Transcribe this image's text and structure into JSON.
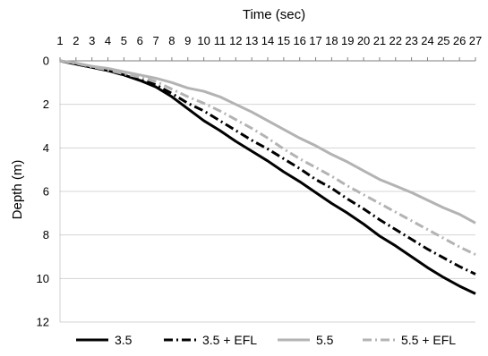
{
  "chart_data": {
    "type": "line",
    "title": "",
    "xlabel": "Time (sec)",
    "ylabel": "Depth (m)",
    "xlim": [
      1,
      27
    ],
    "ylim": [
      0,
      12
    ],
    "y_inverted": true,
    "x_axis_position": "top",
    "x_ticks": [
      "1",
      "2",
      "3",
      "4",
      "5",
      "6",
      "7",
      "8",
      "9",
      "10",
      "11",
      "12",
      "13",
      "14",
      "15",
      "16",
      "17",
      "18",
      "19",
      "20",
      "21",
      "22",
      "23",
      "24",
      "25",
      "26",
      "27"
    ],
    "y_ticks": [
      "0",
      "2",
      "4",
      "6",
      "8",
      "10",
      "12"
    ],
    "grid": "horizontal",
    "legend_position": "bottom",
    "series": [
      {
        "name": "3.5",
        "color": "#000000",
        "dash": "solid",
        "points": [
          [
            1,
            0
          ],
          [
            2,
            0.15
          ],
          [
            3,
            0.3
          ],
          [
            4,
            0.45
          ],
          [
            5,
            0.65
          ],
          [
            6,
            0.9
          ],
          [
            7,
            1.2
          ],
          [
            8,
            1.65
          ],
          [
            9,
            2.2
          ],
          [
            10,
            2.75
          ],
          [
            11,
            3.2
          ],
          [
            12,
            3.7
          ],
          [
            13,
            4.15
          ],
          [
            14,
            4.6
          ],
          [
            15,
            5.1
          ],
          [
            16,
            5.55
          ],
          [
            17,
            6.05
          ],
          [
            18,
            6.55
          ],
          [
            19,
            7.0
          ],
          [
            20,
            7.5
          ],
          [
            21,
            8.05
          ],
          [
            22,
            8.5
          ],
          [
            23,
            9.0
          ],
          [
            24,
            9.5
          ],
          [
            25,
            9.95
          ],
          [
            26,
            10.35
          ],
          [
            27,
            10.7
          ]
        ]
      },
      {
        "name": "3.5 + EFL",
        "color": "#000000",
        "dash": "dashdot",
        "points": [
          [
            1,
            0
          ],
          [
            2,
            0.15
          ],
          [
            3,
            0.3
          ],
          [
            4,
            0.45
          ],
          [
            5,
            0.65
          ],
          [
            6,
            0.85
          ],
          [
            7,
            1.1
          ],
          [
            8,
            1.5
          ],
          [
            9,
            1.95
          ],
          [
            10,
            2.3
          ],
          [
            11,
            2.75
          ],
          [
            12,
            3.2
          ],
          [
            13,
            3.65
          ],
          [
            14,
            4.05
          ],
          [
            15,
            4.5
          ],
          [
            16,
            4.95
          ],
          [
            17,
            5.45
          ],
          [
            18,
            5.85
          ],
          [
            19,
            6.35
          ],
          [
            20,
            6.8
          ],
          [
            21,
            7.3
          ],
          [
            22,
            7.75
          ],
          [
            23,
            8.2
          ],
          [
            24,
            8.65
          ],
          [
            25,
            9.05
          ],
          [
            26,
            9.45
          ],
          [
            27,
            9.8
          ]
        ]
      },
      {
        "name": "5.5",
        "color": "#b3b3b3",
        "dash": "solid",
        "points": [
          [
            1,
            0
          ],
          [
            2,
            0.1
          ],
          [
            3,
            0.25
          ],
          [
            4,
            0.35
          ],
          [
            5,
            0.5
          ],
          [
            6,
            0.65
          ],
          [
            7,
            0.8
          ],
          [
            8,
            1.0
          ],
          [
            9,
            1.25
          ],
          [
            10,
            1.4
          ],
          [
            11,
            1.65
          ],
          [
            12,
            2.0
          ],
          [
            13,
            2.35
          ],
          [
            14,
            2.75
          ],
          [
            15,
            3.15
          ],
          [
            16,
            3.55
          ],
          [
            17,
            3.9
          ],
          [
            18,
            4.3
          ],
          [
            19,
            4.65
          ],
          [
            20,
            5.05
          ],
          [
            21,
            5.45
          ],
          [
            22,
            5.75
          ],
          [
            23,
            6.05
          ],
          [
            24,
            6.4
          ],
          [
            25,
            6.75
          ],
          [
            26,
            7.05
          ],
          [
            27,
            7.45
          ]
        ]
      },
      {
        "name": "5.5 + EFL",
        "color": "#b3b3b3",
        "dash": "dashdot",
        "points": [
          [
            1,
            0
          ],
          [
            2,
            0.12
          ],
          [
            3,
            0.28
          ],
          [
            4,
            0.42
          ],
          [
            5,
            0.6
          ],
          [
            6,
            0.75
          ],
          [
            7,
            0.95
          ],
          [
            8,
            1.3
          ],
          [
            9,
            1.65
          ],
          [
            10,
            1.95
          ],
          [
            11,
            2.3
          ],
          [
            12,
            2.7
          ],
          [
            13,
            3.1
          ],
          [
            14,
            3.55
          ],
          [
            15,
            4.05
          ],
          [
            16,
            4.5
          ],
          [
            17,
            4.9
          ],
          [
            18,
            5.3
          ],
          [
            19,
            5.75
          ],
          [
            20,
            6.15
          ],
          [
            21,
            6.55
          ],
          [
            22,
            6.95
          ],
          [
            23,
            7.35
          ],
          [
            24,
            7.75
          ],
          [
            25,
            8.15
          ],
          [
            26,
            8.55
          ],
          [
            27,
            8.9
          ]
        ]
      }
    ]
  }
}
